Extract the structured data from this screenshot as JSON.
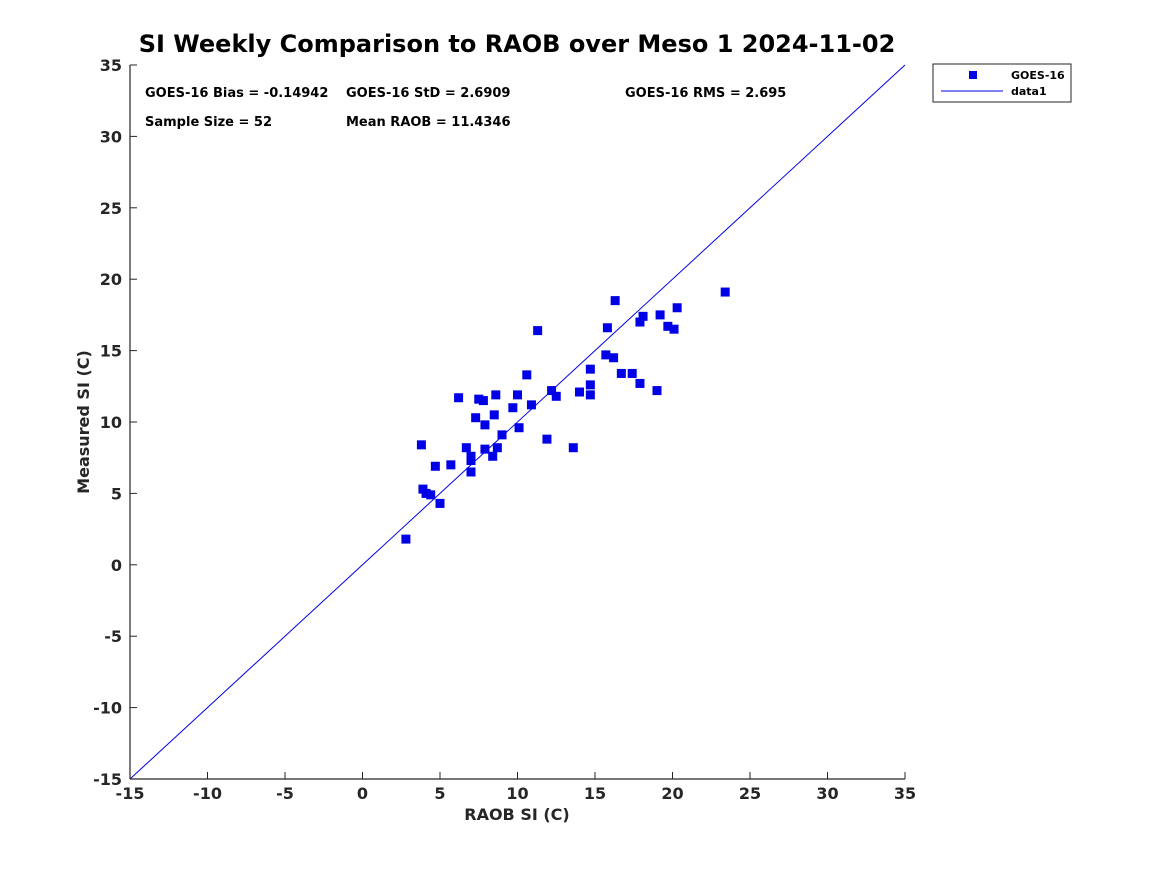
{
  "chart_data": {
    "type": "scatter",
    "title": "SI Weekly Comparison to RAOB over Meso 1 2024-11-02",
    "xlabel": "RAOB SI (C)",
    "ylabel": "Measured SI (C)",
    "xlim": [
      -15,
      35
    ],
    "ylim": [
      -15,
      35
    ],
    "xticks": [
      -15,
      -10,
      -5,
      0,
      5,
      10,
      15,
      20,
      25,
      30,
      35
    ],
    "yticks": [
      -15,
      -10,
      -5,
      0,
      5,
      10,
      15,
      20,
      25,
      30,
      35
    ],
    "grid": false,
    "legend_position": "top-right-outside",
    "legend": [
      "GOES-16",
      "data1"
    ],
    "colors": {
      "series": "#0000e6",
      "line": "#0000e6",
      "axis": "#262626"
    },
    "annotations": {
      "bias": "GOES-16 Bias = -0.14942",
      "std": "GOES-16 StD = 2.6909",
      "rms": "GOES-16 RMS = 2.695",
      "sample_size": "Sample Size = 52",
      "mean_raob": "Mean RAOB = 11.4346"
    },
    "series": [
      {
        "name": "GOES-16",
        "marker": "square",
        "x": [
          2.8,
          3.8,
          3.9,
          4.1,
          4.4,
          4.7,
          5.0,
          5.7,
          6.2,
          6.7,
          7.0,
          7.0,
          7.0,
          7.3,
          7.5,
          7.8,
          7.9,
          7.9,
          8.4,
          8.5,
          8.6,
          8.7,
          9.0,
          9.7,
          10.0,
          10.1,
          10.6,
          10.9,
          11.3,
          11.9,
          12.2,
          12.5,
          13.6,
          14.0,
          14.7,
          14.7,
          14.7,
          15.7,
          15.8,
          16.2,
          16.3,
          16.7,
          17.4,
          17.9,
          17.9,
          18.1,
          19.0,
          19.2,
          19.7,
          20.1,
          20.3,
          23.4
        ],
        "y": [
          1.8,
          8.4,
          5.3,
          5.0,
          4.9,
          6.9,
          4.3,
          7.0,
          11.7,
          8.2,
          7.6,
          7.3,
          6.5,
          10.3,
          11.6,
          11.5,
          9.8,
          8.1,
          7.6,
          10.5,
          11.9,
          8.2,
          9.1,
          11.0,
          11.9,
          9.6,
          13.3,
          11.2,
          16.4,
          8.8,
          12.2,
          11.8,
          8.2,
          12.1,
          13.7,
          12.6,
          11.9,
          14.7,
          16.6,
          14.5,
          18.5,
          13.4,
          13.4,
          17.0,
          12.7,
          17.4,
          12.2,
          17.5,
          16.7,
          16.5,
          18.0,
          19.1
        ]
      },
      {
        "name": "data1",
        "type": "line",
        "x": [
          -15,
          35
        ],
        "y": [
          -15,
          35
        ]
      }
    ]
  }
}
